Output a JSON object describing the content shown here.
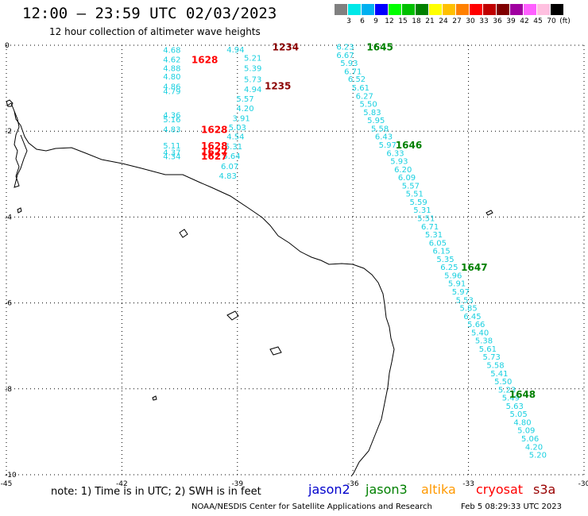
{
  "title": "12:00 – 23:59 UTC 02/03/2023",
  "subtitle": "12 hour collection of altimeter wave heights",
  "scale": {
    "labels": [
      "3",
      "6",
      "9",
      "12",
      "15",
      "18",
      "21",
      "24",
      "27",
      "30",
      "33",
      "36",
      "39",
      "42",
      "45",
      "70",
      "(ft)"
    ],
    "colors": [
      "#808080",
      "#00e8e8",
      "#00b0f0",
      "#0000ff",
      "#00ff00",
      "#00c000",
      "#008000",
      "#ffff00",
      "#ffc000",
      "#ff8000",
      "#ff0000",
      "#c00000",
      "#800000",
      "#a000a0",
      "#ff60ff",
      "#ffc0e0",
      "#000000"
    ]
  },
  "axes": {
    "x_ticks": [
      {
        "value": -45,
        "label": "-45"
      },
      {
        "value": -42,
        "label": "-42"
      },
      {
        "value": -39,
        "label": "-39"
      },
      {
        "value": -36,
        "label": "-36"
      },
      {
        "value": -33,
        "label": "-33"
      },
      {
        "value": -30,
        "label": "-30"
      }
    ],
    "y_ticks": [
      {
        "value": 0,
        "label": "0"
      },
      {
        "value": -2,
        "label": "-2"
      },
      {
        "value": -4,
        "label": "-4"
      },
      {
        "value": -6,
        "label": "-6"
      },
      {
        "value": -8,
        "label": "-8"
      },
      {
        "value": -10,
        "label": "-10"
      }
    ],
    "lon_range": [
      -45,
      -30
    ],
    "lat_range": [
      -10,
      0
    ]
  },
  "colors": {
    "cyan": "#1ad0e0",
    "darkred": "#8b0000",
    "red": "#ff0000",
    "green": "#008000"
  },
  "measurements": [
    {
      "lon": -40.7,
      "lat": -0.1,
      "text": "4.68"
    },
    {
      "lon": -40.7,
      "lat": -0.32,
      "text": "4.62"
    },
    {
      "lon": -40.7,
      "lat": -0.53,
      "text": "4.88"
    },
    {
      "lon": -40.7,
      "lat": -0.72,
      "text": "4.80"
    },
    {
      "lon": -40.7,
      "lat": -0.95,
      "text": "4.86"
    },
    {
      "lon": -40.7,
      "lat": -1.06,
      "text": "4.79"
    },
    {
      "lon": -40.7,
      "lat": -1.62,
      "text": "4.36"
    },
    {
      "lon": -40.7,
      "lat": -1.72,
      "text": "5.16"
    },
    {
      "lon": -40.7,
      "lat": -1.95,
      "text": "4.83"
    },
    {
      "lon": -40.7,
      "lat": -2.33,
      "text": "5.11"
    },
    {
      "lon": -40.7,
      "lat": -2.49,
      "text": "4.37"
    },
    {
      "lon": -40.7,
      "lat": -2.58,
      "text": "4.34"
    },
    {
      "lon": -39.05,
      "lat": -0.09,
      "text": "4.94"
    },
    {
      "lon": -38.6,
      "lat": -0.29,
      "text": "5.21"
    },
    {
      "lon": -38.6,
      "lat": -0.53,
      "text": "5.39"
    },
    {
      "lon": -38.6,
      "lat": -0.79,
      "text": "5.73"
    },
    {
      "lon": -38.6,
      "lat": -1.02,
      "text": "4.94"
    },
    {
      "lon": -38.8,
      "lat": -1.24,
      "text": "5.57"
    },
    {
      "lon": -38.8,
      "lat": -1.46,
      "text": "4.20"
    },
    {
      "lon": -38.9,
      "lat": -1.69,
      "text": "3.91"
    },
    {
      "lon": -39.0,
      "lat": -1.9,
      "text": "5.03"
    },
    {
      "lon": -39.05,
      "lat": -2.12,
      "text": "4.54"
    },
    {
      "lon": -39.1,
      "lat": -2.35,
      "text": "5.31"
    },
    {
      "lon": -39.15,
      "lat": -2.57,
      "text": "5.64"
    },
    {
      "lon": -39.2,
      "lat": -2.81,
      "text": "6.07"
    },
    {
      "lon": -39.25,
      "lat": -3.03,
      "text": "4.83"
    },
    {
      "lon": -36.2,
      "lat": -0.03,
      "text": "6.23"
    },
    {
      "lon": -36.2,
      "lat": -0.22,
      "text": "6.67"
    },
    {
      "lon": -36.1,
      "lat": -0.41,
      "text": "5.93"
    },
    {
      "lon": -36.0,
      "lat": -0.6,
      "text": "6.71"
    },
    {
      "lon": -35.9,
      "lat": -0.78,
      "text": "6.52"
    },
    {
      "lon": -35.8,
      "lat": -0.98,
      "text": "5.61"
    },
    {
      "lon": -35.7,
      "lat": -1.17,
      "text": "6.27"
    },
    {
      "lon": -35.6,
      "lat": -1.36,
      "text": "5.50"
    },
    {
      "lon": -35.5,
      "lat": -1.55,
      "text": "5.83"
    },
    {
      "lon": -35.4,
      "lat": -1.74,
      "text": "5.95"
    },
    {
      "lon": -35.3,
      "lat": -1.93,
      "text": "5.58"
    },
    {
      "lon": -35.2,
      "lat": -2.12,
      "text": "6.43"
    },
    {
      "lon": -35.1,
      "lat": -2.31,
      "text": "5.97"
    },
    {
      "lon": -34.9,
      "lat": -2.5,
      "text": "6.33"
    },
    {
      "lon": -34.8,
      "lat": -2.69,
      "text": "5.93"
    },
    {
      "lon": -34.7,
      "lat": -2.88,
      "text": "6.20"
    },
    {
      "lon": -34.6,
      "lat": -3.07,
      "text": "6.09"
    },
    {
      "lon": -34.5,
      "lat": -3.26,
      "text": "5.57"
    },
    {
      "lon": -34.4,
      "lat": -3.45,
      "text": "5.51"
    },
    {
      "lon": -34.3,
      "lat": -3.64,
      "text": "5.59"
    },
    {
      "lon": -34.2,
      "lat": -3.83,
      "text": "5.31"
    },
    {
      "lon": -34.1,
      "lat": -4.02,
      "text": "5.51"
    },
    {
      "lon": -34.0,
      "lat": -4.21,
      "text": "6.71"
    },
    {
      "lon": -33.9,
      "lat": -4.4,
      "text": "5.31"
    },
    {
      "lon": -33.8,
      "lat": -4.59,
      "text": "6.05"
    },
    {
      "lon": -33.7,
      "lat": -4.78,
      "text": "6.15"
    },
    {
      "lon": -33.6,
      "lat": -4.97,
      "text": "5.35"
    },
    {
      "lon": -33.5,
      "lat": -5.16,
      "text": "6.25"
    },
    {
      "lon": -33.4,
      "lat": -5.35,
      "text": "5.96"
    },
    {
      "lon": -33.3,
      "lat": -5.54,
      "text": "5.91"
    },
    {
      "lon": -33.2,
      "lat": -5.73,
      "text": "5.97"
    },
    {
      "lon": -33.1,
      "lat": -5.92,
      "text": "5.53"
    },
    {
      "lon": -33.0,
      "lat": -6.11,
      "text": "5.85"
    },
    {
      "lon": -32.9,
      "lat": -6.3,
      "text": "6.45"
    },
    {
      "lon": -32.8,
      "lat": -6.49,
      "text": "5.66"
    },
    {
      "lon": -32.7,
      "lat": -6.68,
      "text": "5.40"
    },
    {
      "lon": -32.6,
      "lat": -6.87,
      "text": "5.38"
    },
    {
      "lon": -32.5,
      "lat": -7.06,
      "text": "5.61"
    },
    {
      "lon": -32.4,
      "lat": -7.25,
      "text": "5.73"
    },
    {
      "lon": -32.3,
      "lat": -7.44,
      "text": "5.58"
    },
    {
      "lon": -32.2,
      "lat": -7.63,
      "text": "5.41"
    },
    {
      "lon": -32.1,
      "lat": -7.82,
      "text": "5.50"
    },
    {
      "lon": -32.0,
      "lat": -8.01,
      "text": "5.23"
    },
    {
      "lon": -31.9,
      "lat": -8.2,
      "text": "5.49"
    },
    {
      "lon": -31.8,
      "lat": -8.39,
      "text": "5.63"
    },
    {
      "lon": -31.7,
      "lat": -8.58,
      "text": "5.05"
    },
    {
      "lon": -31.6,
      "lat": -8.77,
      "text": "4.80"
    },
    {
      "lon": -31.5,
      "lat": -8.96,
      "text": "5.09"
    },
    {
      "lon": -31.4,
      "lat": -9.15,
      "text": "5.06"
    },
    {
      "lon": -31.3,
      "lat": -9.34,
      "text": "4.20"
    },
    {
      "lon": -31.2,
      "lat": -9.53,
      "text": "5.20"
    }
  ],
  "pass_labels": [
    {
      "lon": -37.75,
      "lat": -0.03,
      "text": "1234",
      "color": "darkred"
    },
    {
      "lon": -37.95,
      "lat": -0.93,
      "text": "1235",
      "color": "darkred"
    },
    {
      "lon": -39.85,
      "lat": -0.32,
      "text": "1628",
      "color": "red"
    },
    {
      "lon": -39.6,
      "lat": -1.95,
      "text": "1628",
      "color": "red"
    },
    {
      "lon": -39.6,
      "lat": -2.33,
      "text": "1628",
      "color": "red"
    },
    {
      "lon": -39.6,
      "lat": -2.47,
      "text": "1627",
      "color": "red"
    },
    {
      "lon": -39.6,
      "lat": -2.57,
      "text": "1627",
      "color": "red"
    },
    {
      "lon": -35.3,
      "lat": -0.03,
      "text": "1645",
      "color": "green"
    },
    {
      "lon": -34.55,
      "lat": -2.31,
      "text": "1646",
      "color": "green"
    },
    {
      "lon": -32.85,
      "lat": -5.16,
      "text": "1647",
      "color": "green"
    },
    {
      "lon": -31.6,
      "lat": -8.11,
      "text": "1648",
      "color": "green"
    }
  ],
  "note": "note: 1) Time is in UTC; 2) SWH is in feet",
  "satellites": [
    {
      "name": "jason2",
      "color": "#0000cc"
    },
    {
      "name": "jason3",
      "color": "#008000"
    },
    {
      "name": "altika",
      "color": "#ff9900"
    },
    {
      "name": "cryosat",
      "color": "#ff0000"
    },
    {
      "name": "s3a",
      "color": "#990000"
    }
  ],
  "footer": "NOAA/NESDIS Center for Satellite Applications and Research",
  "footer_time": "Feb  5 08:29:33 UTC 2023"
}
